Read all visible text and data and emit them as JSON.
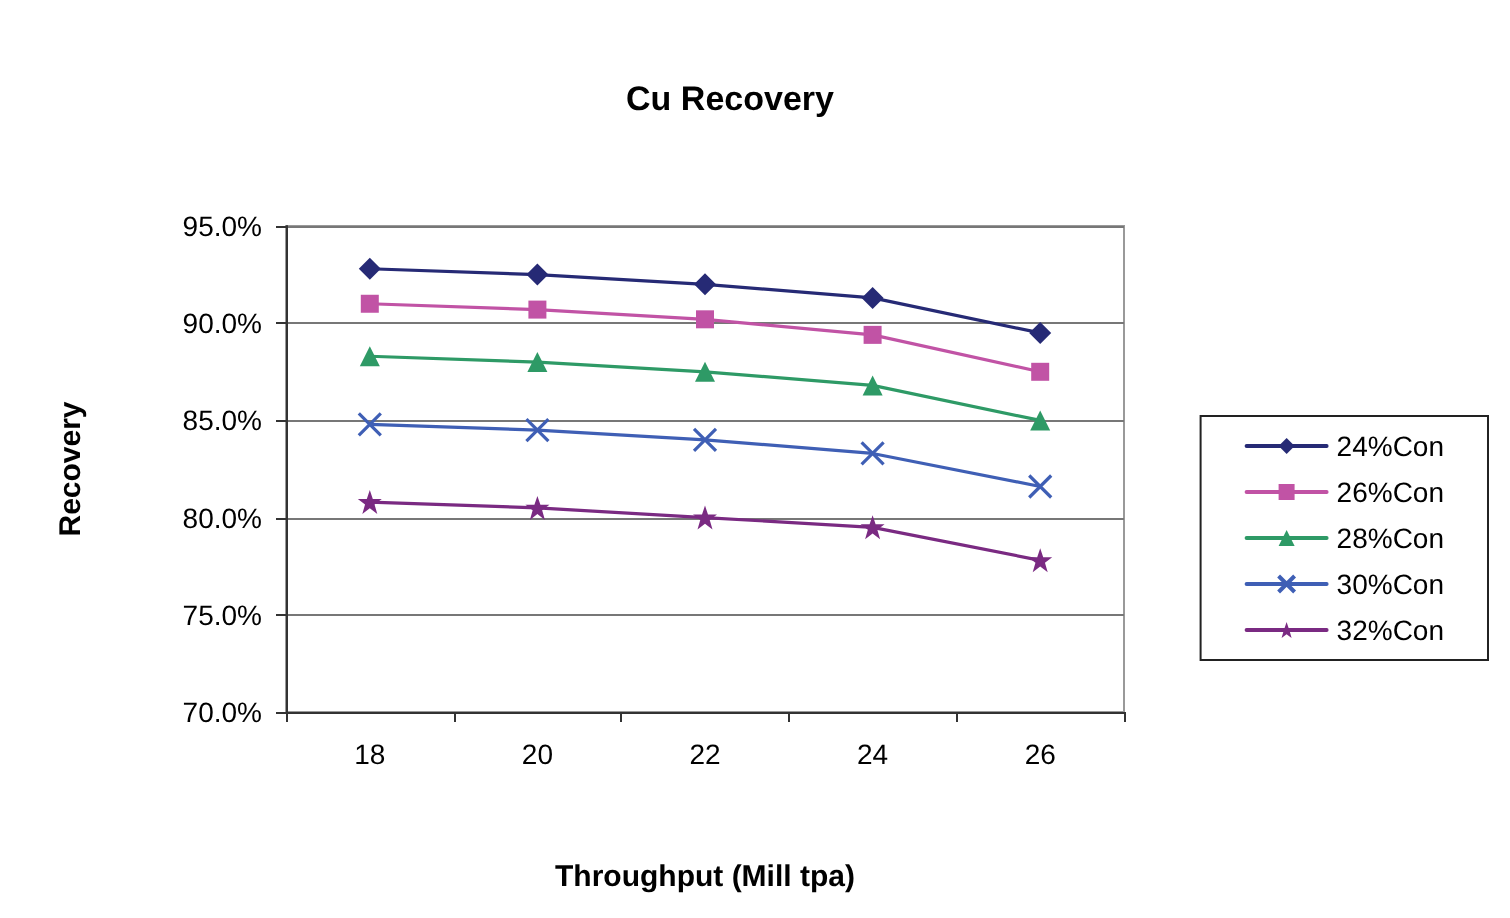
{
  "chart_data": {
    "type": "line",
    "title": "Cu Recovery",
    "xlabel": "Throughput (Mill tpa)",
    "ylabel": "Recovery",
    "categories": [
      "18",
      "20",
      "22",
      "24",
      "26"
    ],
    "series": [
      {
        "name": "24%Con",
        "color": "#262a75",
        "marker": "diamond",
        "values": [
          92.8,
          92.5,
          92.0,
          91.3,
          89.5
        ]
      },
      {
        "name": "26%Con",
        "color": "#c153a5",
        "marker": "square",
        "values": [
          91.0,
          90.7,
          90.2,
          89.4,
          87.5
        ]
      },
      {
        "name": "28%Con",
        "color": "#2e9a66",
        "marker": "triangle",
        "values": [
          88.3,
          88.0,
          87.5,
          86.8,
          85.0
        ]
      },
      {
        "name": "30%Con",
        "color": "#3f5fb5",
        "marker": "cross",
        "values": [
          84.8,
          84.5,
          84.0,
          83.3,
          81.6
        ]
      },
      {
        "name": "32%Con",
        "color": "#7a2a82",
        "marker": "star",
        "values": [
          80.8,
          80.5,
          80.0,
          79.5,
          77.8
        ]
      }
    ],
    "ylim": [
      70,
      95
    ],
    "yticks": [
      {
        "value": 70,
        "label": "70.0%"
      },
      {
        "value": 75,
        "label": "75.0%"
      },
      {
        "value": 80,
        "label": "80.0%"
      },
      {
        "value": 85,
        "label": "85.0%"
      },
      {
        "value": 90,
        "label": "90.0%"
      },
      {
        "value": 95,
        "label": "95.0%"
      }
    ],
    "grid": "y",
    "legend": "right",
    "line_style": "solid"
  }
}
